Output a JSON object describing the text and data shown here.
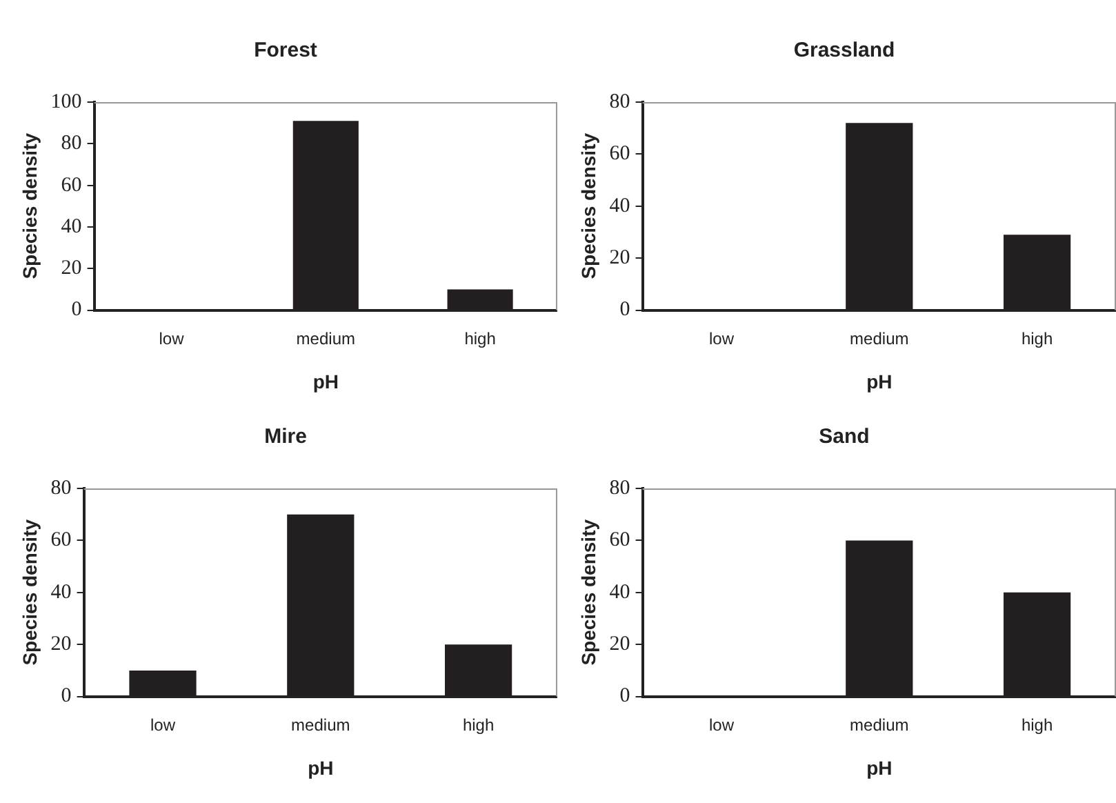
{
  "chart_data": [
    {
      "type": "bar",
      "title": "Forest",
      "xlabel": "pH",
      "ylabel": "Species density",
      "categories": [
        "low",
        "medium",
        "high"
      ],
      "values": [
        0,
        91,
        10
      ],
      "color": "#231f20",
      "ylim": [
        0,
        100
      ],
      "yticks": [
        0,
        20,
        40,
        60,
        80,
        100
      ],
      "grid": false
    },
    {
      "type": "bar",
      "title": "Grassland",
      "xlabel": "pH",
      "ylabel": "Species density",
      "categories": [
        "low",
        "medium",
        "high"
      ],
      "values": [
        0,
        72,
        29
      ],
      "color": "#231f20",
      "ylim": [
        0,
        80
      ],
      "yticks": [
        0,
        20,
        40,
        60,
        80
      ],
      "grid": false
    },
    {
      "type": "bar",
      "title": "Mire",
      "xlabel": "pH",
      "ylabel": "Species density",
      "categories": [
        "low",
        "medium",
        "high"
      ],
      "values": [
        10,
        70,
        20
      ],
      "color": "#231f20",
      "ylim": [
        0,
        80
      ],
      "yticks": [
        0,
        20,
        40,
        60,
        80
      ],
      "grid": false
    },
    {
      "type": "bar",
      "title": "Sand",
      "xlabel": "pH",
      "ylabel": "Species density",
      "categories": [
        "low",
        "medium",
        "high"
      ],
      "values": [
        0,
        60,
        40
      ],
      "color": "#231f20",
      "ylim": [
        0,
        80
      ],
      "yticks": [
        0,
        20,
        40,
        60,
        80
      ],
      "grid": false
    }
  ]
}
